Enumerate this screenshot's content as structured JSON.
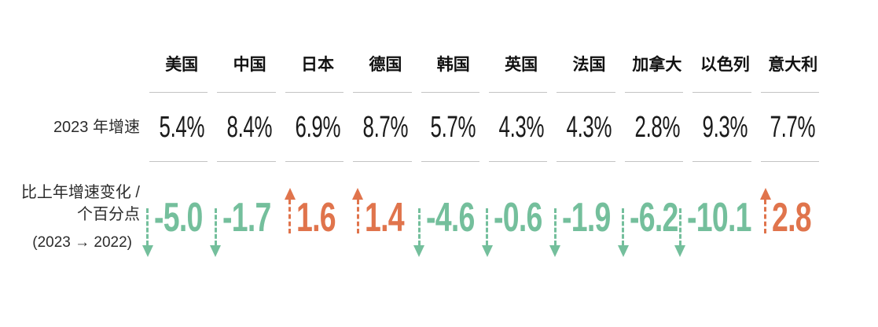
{
  "colors": {
    "positive": "#E0744C",
    "negative": "#74BF9C",
    "divider": "#c4c4c4",
    "text": "#1a1a1a"
  },
  "table": {
    "row_labels": {
      "growth": "2023 年增速",
      "change_line1": "比上年增速变化 /",
      "change_line2": "个百分点",
      "change_line3": "(2023 → 2022)"
    },
    "columns": [
      {
        "country": "美国",
        "growth": "5.4%",
        "change": "-5.0",
        "direction": "down"
      },
      {
        "country": "中国",
        "growth": "8.4%",
        "change": "-1.7",
        "direction": "down"
      },
      {
        "country": "日本",
        "growth": "6.9%",
        "change": "1.6",
        "direction": "up"
      },
      {
        "country": "德国",
        "growth": "8.7%",
        "change": "1.4",
        "direction": "up"
      },
      {
        "country": "韩国",
        "growth": "5.7%",
        "change": "-4.6",
        "direction": "down"
      },
      {
        "country": "英国",
        "growth": "4.3%",
        "change": "-0.6",
        "direction": "down"
      },
      {
        "country": "法国",
        "growth": "4.3%",
        "change": "-1.9",
        "direction": "down"
      },
      {
        "country": "加拿大",
        "growth": "2.8%",
        "change": "-6.2",
        "direction": "down"
      },
      {
        "country": "以色列",
        "growth": "9.3%",
        "change": "-10.1",
        "direction": "down"
      },
      {
        "country": "意大利",
        "growth": "7.7%",
        "change": "2.8",
        "direction": "up"
      }
    ]
  },
  "chart_data": {
    "type": "table",
    "categories": [
      "美国",
      "中国",
      "日本",
      "德国",
      "韩国",
      "英国",
      "法国",
      "加拿大",
      "以色列",
      "意大利"
    ],
    "series": [
      {
        "name": "2023 年增速 (%)",
        "values": [
          5.4,
          8.4,
          6.9,
          8.7,
          5.7,
          4.3,
          4.3,
          2.8,
          9.3,
          7.7
        ]
      },
      {
        "name": "比上年增速变化 / 个百分点 (2023 → 2022)",
        "values": [
          -5.0,
          -1.7,
          1.6,
          1.4,
          -4.6,
          -0.6,
          -1.9,
          -6.2,
          -10.1,
          2.8
        ]
      }
    ],
    "legend_position": "none",
    "grid": false,
    "notes": "负值为绿色下行虚线箭头，正值为橙色上行虚线箭头"
  }
}
